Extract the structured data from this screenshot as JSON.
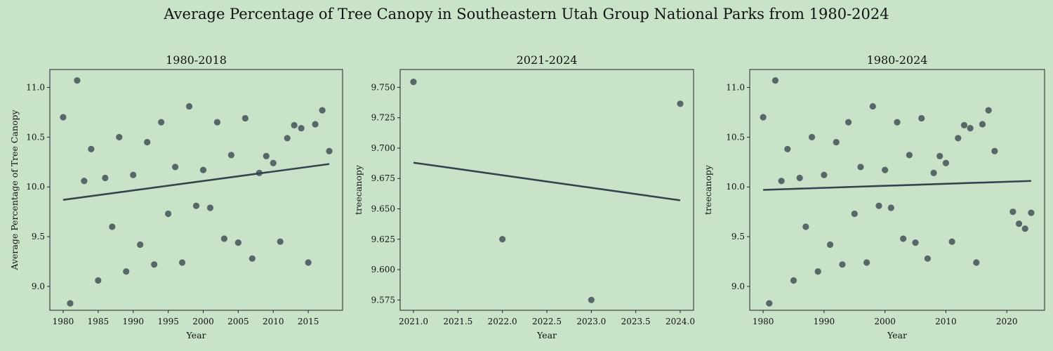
{
  "title": "Average Percentage of Tree Canopy in Southeastern Utah Group National Parks from 1980-2024",
  "chart_data": [
    {
      "type": "scatter",
      "title": "1980-2018",
      "xlabel": "Year",
      "ylabel": "Average Percentage of Tree Canopy",
      "xlim": [
        1978.1,
        2019.9
      ],
      "ylim": [
        8.76,
        11.18
      ],
      "xticks": [
        1980,
        1985,
        1990,
        1995,
        2000,
        2005,
        2010,
        2015
      ],
      "xtick_labels": [
        "1980",
        "1985",
        "1990",
        "1995",
        "2000",
        "2005",
        "2010",
        "2015"
      ],
      "yticks": [
        9.0,
        9.5,
        10.0,
        10.5,
        11.0
      ],
      "ytick_labels": [
        "9.0",
        "9.5",
        "10.0",
        "10.5",
        "11.0"
      ],
      "trend_line": {
        "x": [
          1980,
          2018
        ],
        "y": [
          9.87,
          10.23
        ]
      },
      "x": [
        1980,
        1981,
        1982,
        1983,
        1984,
        1985,
        1986,
        1987,
        1988,
        1989,
        1990,
        1991,
        1992,
        1993,
        1994,
        1995,
        1996,
        1997,
        1998,
        1999,
        2000,
        2001,
        2002,
        2003,
        2004,
        2005,
        2006,
        2007,
        2008,
        2009,
        2010,
        2011,
        2012,
        2013,
        2014,
        2015,
        2016,
        2017,
        2018
      ],
      "y": [
        10.7,
        8.83,
        11.07,
        10.06,
        10.38,
        9.06,
        10.09,
        9.6,
        10.5,
        9.15,
        10.12,
        9.42,
        10.45,
        9.22,
        10.65,
        9.73,
        10.2,
        9.24,
        10.81,
        9.81,
        10.17,
        9.79,
        10.65,
        9.48,
        10.32,
        9.44,
        10.69,
        9.28,
        10.14,
        10.31,
        10.24,
        9.45,
        10.49,
        10.62,
        10.59,
        9.24,
        10.63,
        10.77,
        10.36
      ]
    },
    {
      "type": "scatter",
      "title": "2021-2024",
      "xlabel": "Year",
      "ylabel": "treecanopy",
      "xlim": [
        2020.85,
        2024.15
      ],
      "ylim": [
        9.5665,
        9.7647
      ],
      "xticks": [
        2021.0,
        2021.5,
        2022.0,
        2022.5,
        2023.0,
        2023.5,
        2024.0
      ],
      "xtick_labels": [
        "2021.0",
        "2021.5",
        "2022.0",
        "2022.5",
        "2023.0",
        "2023.5",
        "2024.0"
      ],
      "yticks": [
        9.575,
        9.6,
        9.625,
        9.65,
        9.675,
        9.7,
        9.725,
        9.75
      ],
      "ytick_labels": [
        "9.575",
        "9.600",
        "9.625",
        "9.650",
        "9.675",
        "9.700",
        "9.725",
        "9.750"
      ],
      "trend_line": {
        "x": [
          2021,
          2024
        ],
        "y": [
          9.688,
          9.657
        ]
      },
      "x": [
        2021,
        2022,
        2023,
        2024
      ],
      "y": [
        9.7545,
        9.625,
        9.575,
        9.7365
      ]
    },
    {
      "type": "scatter",
      "title": "1980-2024",
      "xlabel": "Year",
      "ylabel": "treecanopy",
      "xlim": [
        1977.8,
        2026.2
      ],
      "ylim": [
        8.76,
        11.18
      ],
      "xticks": [
        1980,
        1990,
        2000,
        2010,
        2020
      ],
      "xtick_labels": [
        "1980",
        "1990",
        "2000",
        "2010",
        "2020"
      ],
      "yticks": [
        9.0,
        9.5,
        10.0,
        10.5,
        11.0
      ],
      "ytick_labels": [
        "9.0",
        "9.5",
        "10.0",
        "10.5",
        "11.0"
      ],
      "trend_line": {
        "x": [
          1980,
          2024
        ],
        "y": [
          9.97,
          10.06
        ]
      },
      "x": [
        1980,
        1981,
        1982,
        1983,
        1984,
        1985,
        1986,
        1987,
        1988,
        1989,
        1990,
        1991,
        1992,
        1993,
        1994,
        1995,
        1996,
        1997,
        1998,
        1999,
        2000,
        2001,
        2002,
        2003,
        2004,
        2005,
        2006,
        2007,
        2008,
        2009,
        2010,
        2011,
        2012,
        2013,
        2014,
        2015,
        2016,
        2017,
        2018,
        2021,
        2022,
        2023,
        2024
      ],
      "y": [
        10.7,
        8.83,
        11.07,
        10.06,
        10.38,
        9.06,
        10.09,
        9.6,
        10.5,
        9.15,
        10.12,
        9.42,
        10.45,
        9.22,
        10.65,
        9.73,
        10.2,
        9.24,
        10.81,
        9.81,
        10.17,
        9.79,
        10.65,
        9.48,
        10.32,
        9.44,
        10.69,
        9.28,
        10.14,
        10.31,
        10.24,
        9.45,
        10.49,
        10.62,
        10.59,
        9.24,
        10.63,
        10.77,
        10.36,
        9.75,
        9.63,
        9.58,
        9.74
      ]
    }
  ]
}
